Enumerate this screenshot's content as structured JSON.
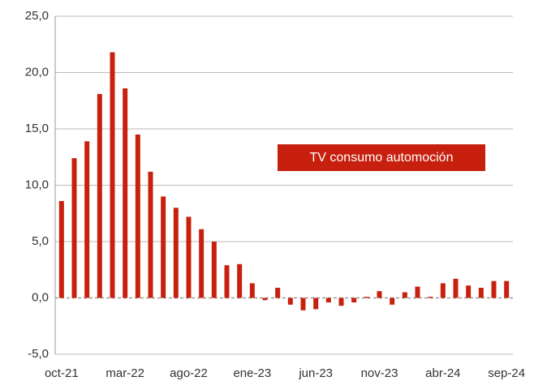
{
  "chart_data": {
    "type": "bar",
    "categories": [
      "oct-21",
      null,
      null,
      null,
      null,
      "mar-22",
      null,
      null,
      null,
      null,
      "ago-22",
      null,
      null,
      null,
      null,
      "ene-23",
      null,
      null,
      null,
      null,
      "jun-23",
      null,
      null,
      null,
      null,
      "nov-23",
      null,
      null,
      null,
      null,
      "abr-24",
      null,
      null,
      null,
      null,
      "sep-24"
    ],
    "series": [
      {
        "name": "TV consumo automoción",
        "color": "#c8200e",
        "values": [
          8.6,
          12.4,
          13.9,
          18.1,
          21.8,
          18.6,
          14.5,
          11.2,
          9.0,
          8.0,
          7.2,
          6.1,
          5.0,
          2.9,
          3.0,
          1.3,
          -0.2,
          0.9,
          -0.6,
          -1.1,
          -1.0,
          -0.4,
          -0.7,
          -0.4,
          0.1,
          0.6,
          -0.6,
          0.5,
          1.0,
          0.1,
          1.3,
          1.7,
          1.1,
          0.9,
          1.5,
          1.5
        ]
      }
    ],
    "ylim": [
      -5,
      25
    ],
    "yticks": [
      {
        "value": -5,
        "label": "-5,0"
      },
      {
        "value": 0,
        "label": "0,0"
      },
      {
        "value": 5,
        "label": "5,0"
      },
      {
        "value": 10,
        "label": "10,0"
      },
      {
        "value": 15,
        "label": "15,0"
      },
      {
        "value": 20,
        "label": "20,0"
      },
      {
        "value": 25,
        "label": "25,0"
      }
    ],
    "grid": true
  }
}
